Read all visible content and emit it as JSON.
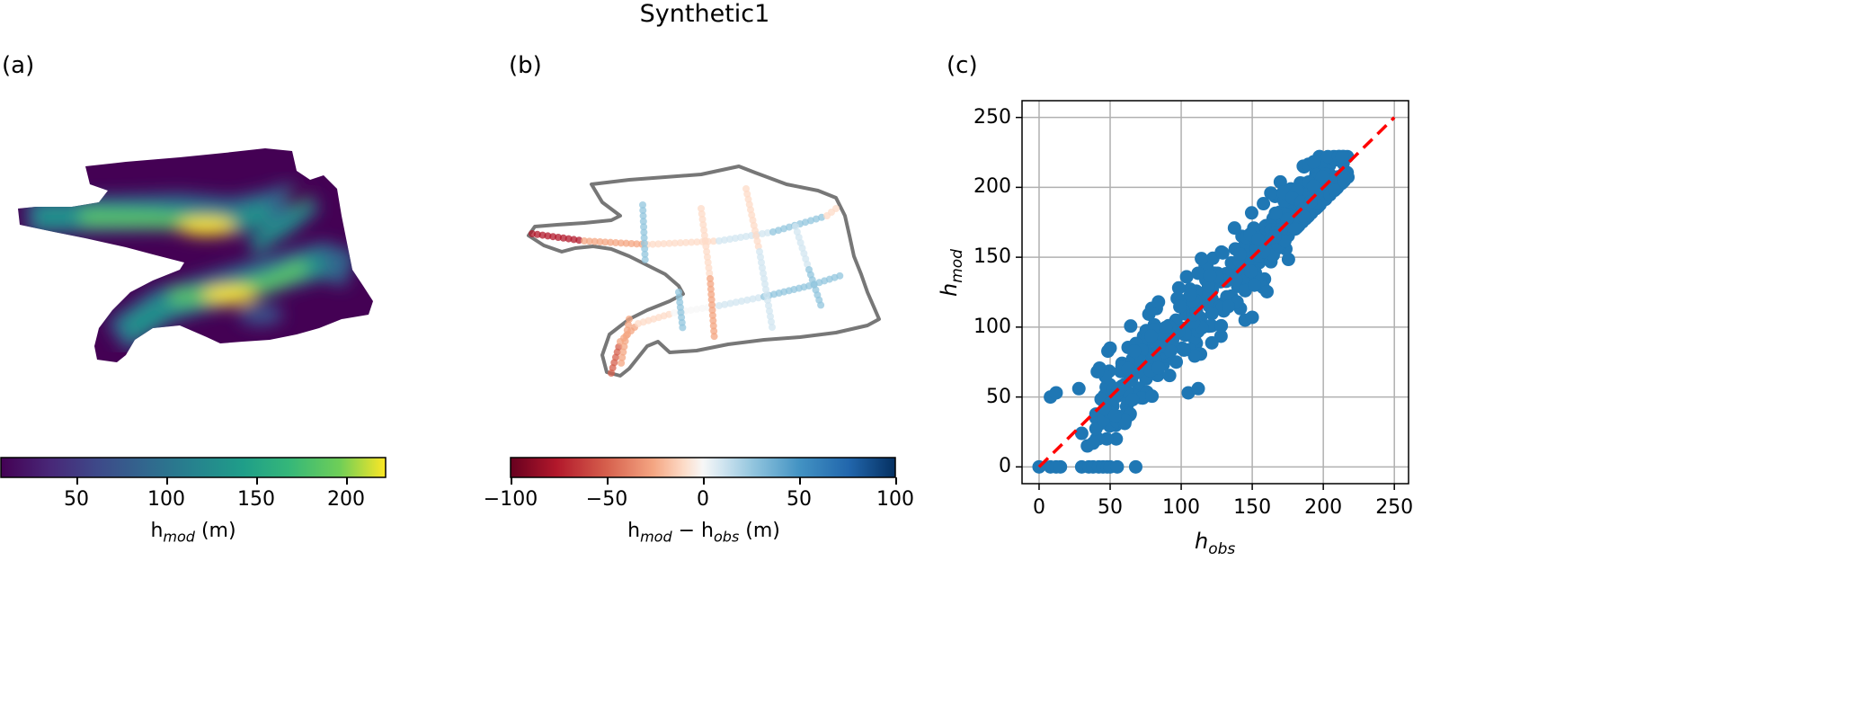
{
  "suptitle": "Synthetic1",
  "panel_labels": {
    "a": "(a)",
    "b": "(b)",
    "c": "(c)"
  },
  "colors": {
    "scatter": "#1f77b4",
    "identity_line": "#ff0000",
    "outline": "#777777",
    "grid": "#b0b0b0"
  },
  "colorbar_a": {
    "colormap": "viridis",
    "ticks": [
      "50",
      "100",
      "150",
      "200"
    ],
    "range": [
      8,
      222
    ],
    "label_main": "h",
    "label_sub": "mod",
    "label_unit": " (m)"
  },
  "colorbar_b": {
    "colormap": "RdBu",
    "ticks": [
      "−100",
      "−50",
      "0",
      "50",
      "100"
    ],
    "range": [
      -100,
      100
    ],
    "label_main": "h",
    "label_sub": "mod",
    "label_mid": " − h",
    "label_sub2": "obs",
    "label_unit": " (m)"
  },
  "chart_data": [
    {
      "panel": "a",
      "type": "heatmap",
      "title": "",
      "colorbar_label": "hmod (m)",
      "vmin": 8,
      "vmax": 222
    },
    {
      "panel": "b",
      "type": "scatter",
      "title": "",
      "colorbar_label": "hmod − hobs (m)",
      "vmin": -100,
      "vmax": 100
    },
    {
      "panel": "c",
      "type": "scatter",
      "title": "",
      "xlabel": "h_obs",
      "ylabel": "h_mod",
      "xlim": [
        -12,
        260
      ],
      "ylim": [
        -12,
        262
      ],
      "xticks": [
        "0",
        "50",
        "100",
        "150",
        "200",
        "250"
      ],
      "yticks": [
        "0",
        "50",
        "100",
        "150",
        "200",
        "250"
      ],
      "grid": true,
      "identity_line": [
        [
          0,
          0
        ],
        [
          250,
          250
        ]
      ],
      "zero_points_x": [
        0,
        8,
        12,
        15,
        30,
        35,
        38,
        42,
        45,
        48,
        50,
        55,
        68
      ],
      "outliers": [
        [
          8,
          50
        ],
        [
          12,
          53
        ],
        [
          28,
          56
        ],
        [
          105,
          53
        ],
        [
          112,
          56
        ],
        [
          84,
          118
        ],
        [
          145,
          105
        ],
        [
          150,
          107
        ],
        [
          30,
          24
        ],
        [
          34,
          15
        ],
        [
          38,
          17
        ],
        [
          50,
          85
        ]
      ],
      "trend_samples": 420,
      "trend": {
        "slope": 1.0,
        "intercept": 0,
        "spread": 14,
        "x_from": 40,
        "x_to": 218
      }
    }
  ]
}
